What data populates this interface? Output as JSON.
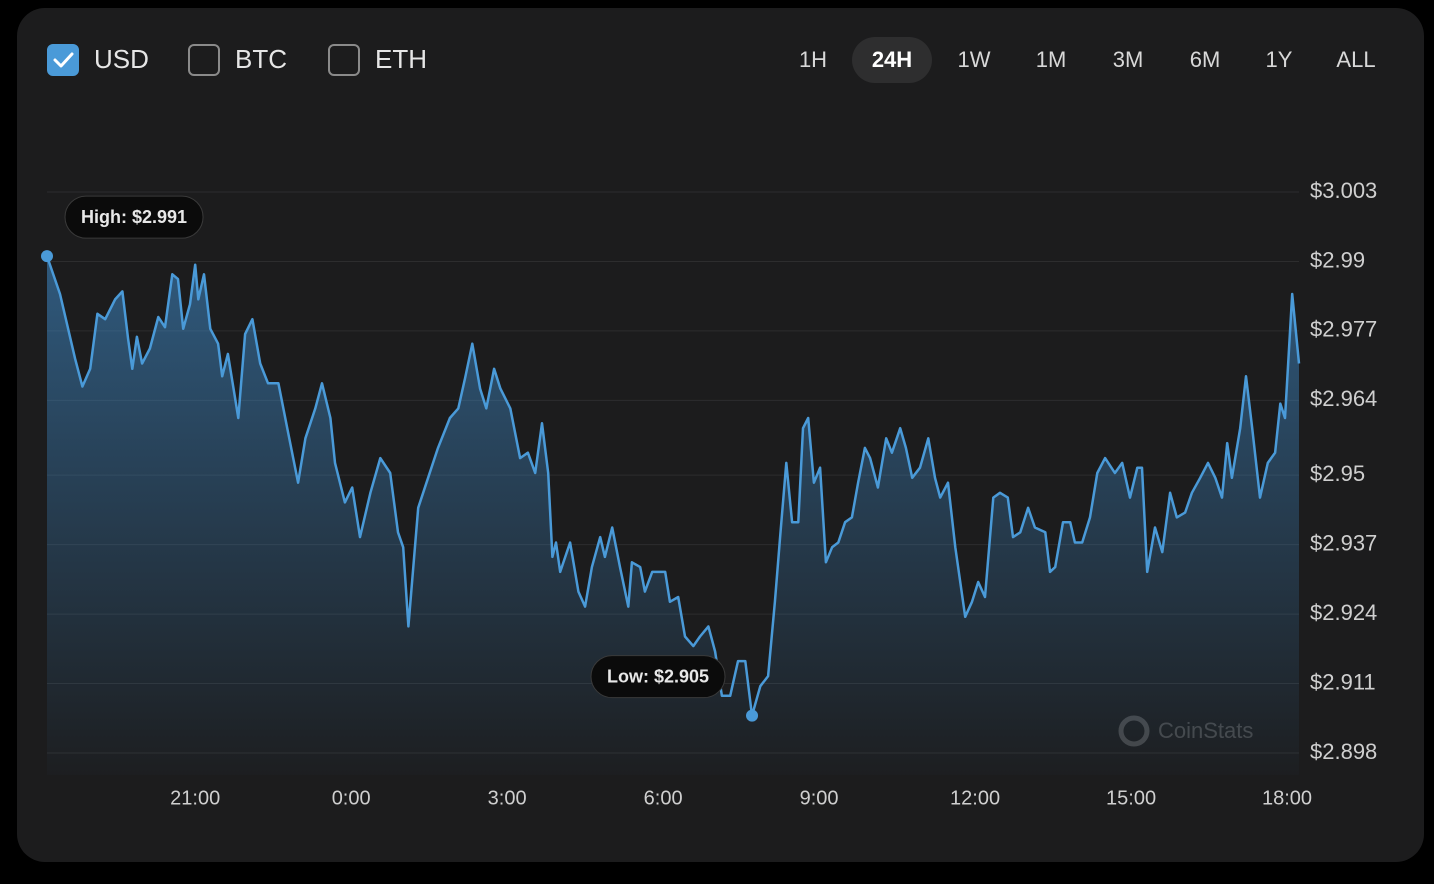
{
  "currencies": [
    {
      "label": "USD",
      "checked": true
    },
    {
      "label": "BTC",
      "checked": false
    },
    {
      "label": "ETH",
      "checked": false
    }
  ],
  "ranges": [
    "1H",
    "24H",
    "1W",
    "1M",
    "3M",
    "6M",
    "1Y",
    "ALL"
  ],
  "selected_range": "24H",
  "watermark": "CoinStats",
  "chart_data": {
    "type": "area",
    "color": "#4a9ad8",
    "grid": true,
    "annotations": [
      {
        "text": "High: $2.991"
      },
      {
        "text": "Low: $2.905"
      }
    ],
    "x": [
      0.15,
      0.4,
      0.69,
      0.83,
      0.98,
      1.12,
      1.27,
      1.46,
      1.6,
      1.71,
      1.79,
      1.88,
      1.98,
      2.13,
      2.29,
      2.42,
      2.56,
      2.67,
      2.77,
      2.9,
      3.0,
      3.06,
      3.17,
      3.29,
      3.44,
      3.52,
      3.63,
      3.83,
      3.96,
      4.1,
      4.25,
      4.4,
      4.6,
      4.79,
      4.98,
      5.12,
      5.31,
      5.44,
      5.6,
      5.69,
      5.88,
      6.02,
      6.17,
      6.37,
      6.56,
      6.75,
      6.9,
      7.0,
      7.1,
      7.29,
      7.48,
      7.67,
      7.9,
      8.06,
      8.19,
      8.33,
      8.48,
      8.6,
      8.75,
      8.87,
      9.06,
      9.25,
      9.4,
      9.54,
      9.67,
      9.79,
      9.87,
      9.94,
      10.02,
      10.21,
      10.37,
      10.5,
      10.63,
      10.79,
      10.88,
      11.02,
      11.17,
      11.33,
      11.4,
      11.56,
      11.65,
      11.79,
      12.04,
      12.13,
      12.29,
      12.42,
      12.58,
      12.71,
      12.87,
      13.0,
      13.13,
      13.29,
      13.44,
      13.58,
      13.71,
      13.87,
      14.02,
      14.15,
      14.25,
      14.37,
      14.48,
      14.6,
      14.69,
      14.79,
      14.9,
      15.02,
      15.13,
      15.25,
      15.37,
      15.5,
      15.63,
      15.75,
      15.88,
      15.98,
      16.13,
      16.29,
      16.4,
      16.56,
      16.67,
      16.79,
      16.94,
      17.1,
      17.23,
      17.33,
      17.48,
      17.62,
      17.81,
      17.94,
      18.06,
      18.19,
      18.35,
      18.48,
      18.63,
      18.73,
      18.87,
      19.02,
      19.15,
      19.35,
      19.44,
      19.54,
      19.69,
      19.83,
      19.92,
      20.06,
      20.21,
      20.35,
      20.5,
      20.69,
      20.83,
      20.98,
      21.12,
      21.21,
      21.31,
      21.46,
      21.6,
      21.75,
      21.88,
      22.04,
      22.17,
      22.33,
      22.48,
      22.62,
      22.75,
      22.85,
      22.94,
      23.1,
      23.21,
      23.33,
      23.48,
      23.63,
      23.77,
      23.87,
      23.96,
      24.1,
      24.23
    ],
    "values": [
      2.991,
      2.9839,
      2.9718,
      2.9666,
      2.9699,
      2.9802,
      2.9792,
      2.9829,
      2.9844,
      2.9755,
      2.9699,
      2.9759,
      2.9709,
      2.9737,
      2.9796,
      2.9777,
      2.9876,
      2.9867,
      2.9774,
      2.982,
      2.9894,
      2.9829,
      2.9876,
      2.9774,
      2.9746,
      2.9685,
      2.9727,
      2.9607,
      2.9764,
      2.9792,
      2.9709,
      2.9672,
      2.9672,
      2.9579,
      2.9486,
      2.9569,
      2.9625,
      2.9672,
      2.9607,
      2.9523,
      2.9449,
      2.9477,
      2.9384,
      2.9467,
      2.9532,
      2.9504,
      2.9393,
      2.9365,
      2.9217,
      2.9439,
      2.9495,
      2.9551,
      2.9607,
      2.9625,
      2.9681,
      2.9746,
      2.9662,
      2.9625,
      2.9699,
      2.9662,
      2.9625,
      2.9532,
      2.9542,
      2.9504,
      2.9597,
      2.9504,
      2.9347,
      2.9374,
      2.9319,
      2.9374,
      2.9282,
      2.9254,
      2.9328,
      2.9384,
      2.9347,
      2.9402,
      2.9328,
      2.9254,
      2.9337,
      2.9328,
      2.9282,
      2.9319,
      2.9319,
      2.9263,
      2.9272,
      2.9198,
      2.918,
      2.9198,
      2.9217,
      2.917,
      2.9087,
      2.9087,
      2.9152,
      2.9152,
      2.905,
      2.9105,
      2.9124,
      2.9263,
      2.9384,
      2.9523,
      2.9412,
      2.9412,
      2.9588,
      2.9607,
      2.9486,
      2.9514,
      2.9337,
      2.9365,
      2.9374,
      2.9412,
      2.9421,
      2.9486,
      2.9551,
      2.9532,
      2.9477,
      2.9569,
      2.9542,
      2.9588,
      2.9551,
      2.9495,
      2.9514,
      2.9569,
      2.9495,
      2.9458,
      2.9486,
      2.9365,
      2.9235,
      2.9263,
      2.93,
      2.9272,
      2.9458,
      2.9467,
      2.9458,
      2.9384,
      2.9393,
      2.9439,
      2.9402,
      2.9393,
      2.9319,
      2.9328,
      2.9412,
      2.9412,
      2.9374,
      2.9374,
      2.9421,
      2.9504,
      2.9532,
      2.9504,
      2.9523,
      2.9458,
      2.9514,
      2.9514,
      2.9319,
      2.9402,
      2.9356,
      2.9467,
      2.9421,
      2.943,
      2.9467,
      2.9495,
      2.9523,
      2.9495,
      2.9458,
      2.956,
      2.9495,
      2.9588,
      2.9685,
      2.9588,
      2.9458,
      2.9523,
      2.9542,
      2.9634,
      2.9607,
      2.9839,
      2.9709
    ],
    "xlim": [
      0.15,
      24.23
    ],
    "xticks": [
      {
        "value": 3,
        "label": "21:00"
      },
      {
        "value": 6,
        "label": "0:00"
      },
      {
        "value": 9,
        "label": "3:00"
      },
      {
        "value": 12,
        "label": "6:00"
      },
      {
        "value": 15,
        "label": "9:00"
      },
      {
        "value": 18,
        "label": "12:00"
      },
      {
        "value": 21,
        "label": "15:00"
      },
      {
        "value": 24,
        "label": "18:00"
      }
    ],
    "ylim": [
      2.898,
      3.003
    ],
    "yticks": [
      {
        "value": 3.003,
        "label": "$3.003"
      },
      {
        "value": 2.99,
        "label": "$2.99"
      },
      {
        "value": 2.977,
        "label": "$2.977"
      },
      {
        "value": 2.964,
        "label": "$2.964"
      },
      {
        "value": 2.95,
        "label": "$2.95"
      },
      {
        "value": 2.937,
        "label": "$2.937"
      },
      {
        "value": 2.924,
        "label": "$2.924"
      },
      {
        "value": 2.911,
        "label": "$2.911"
      },
      {
        "value": 2.898,
        "label": "$2.898"
      }
    ]
  }
}
